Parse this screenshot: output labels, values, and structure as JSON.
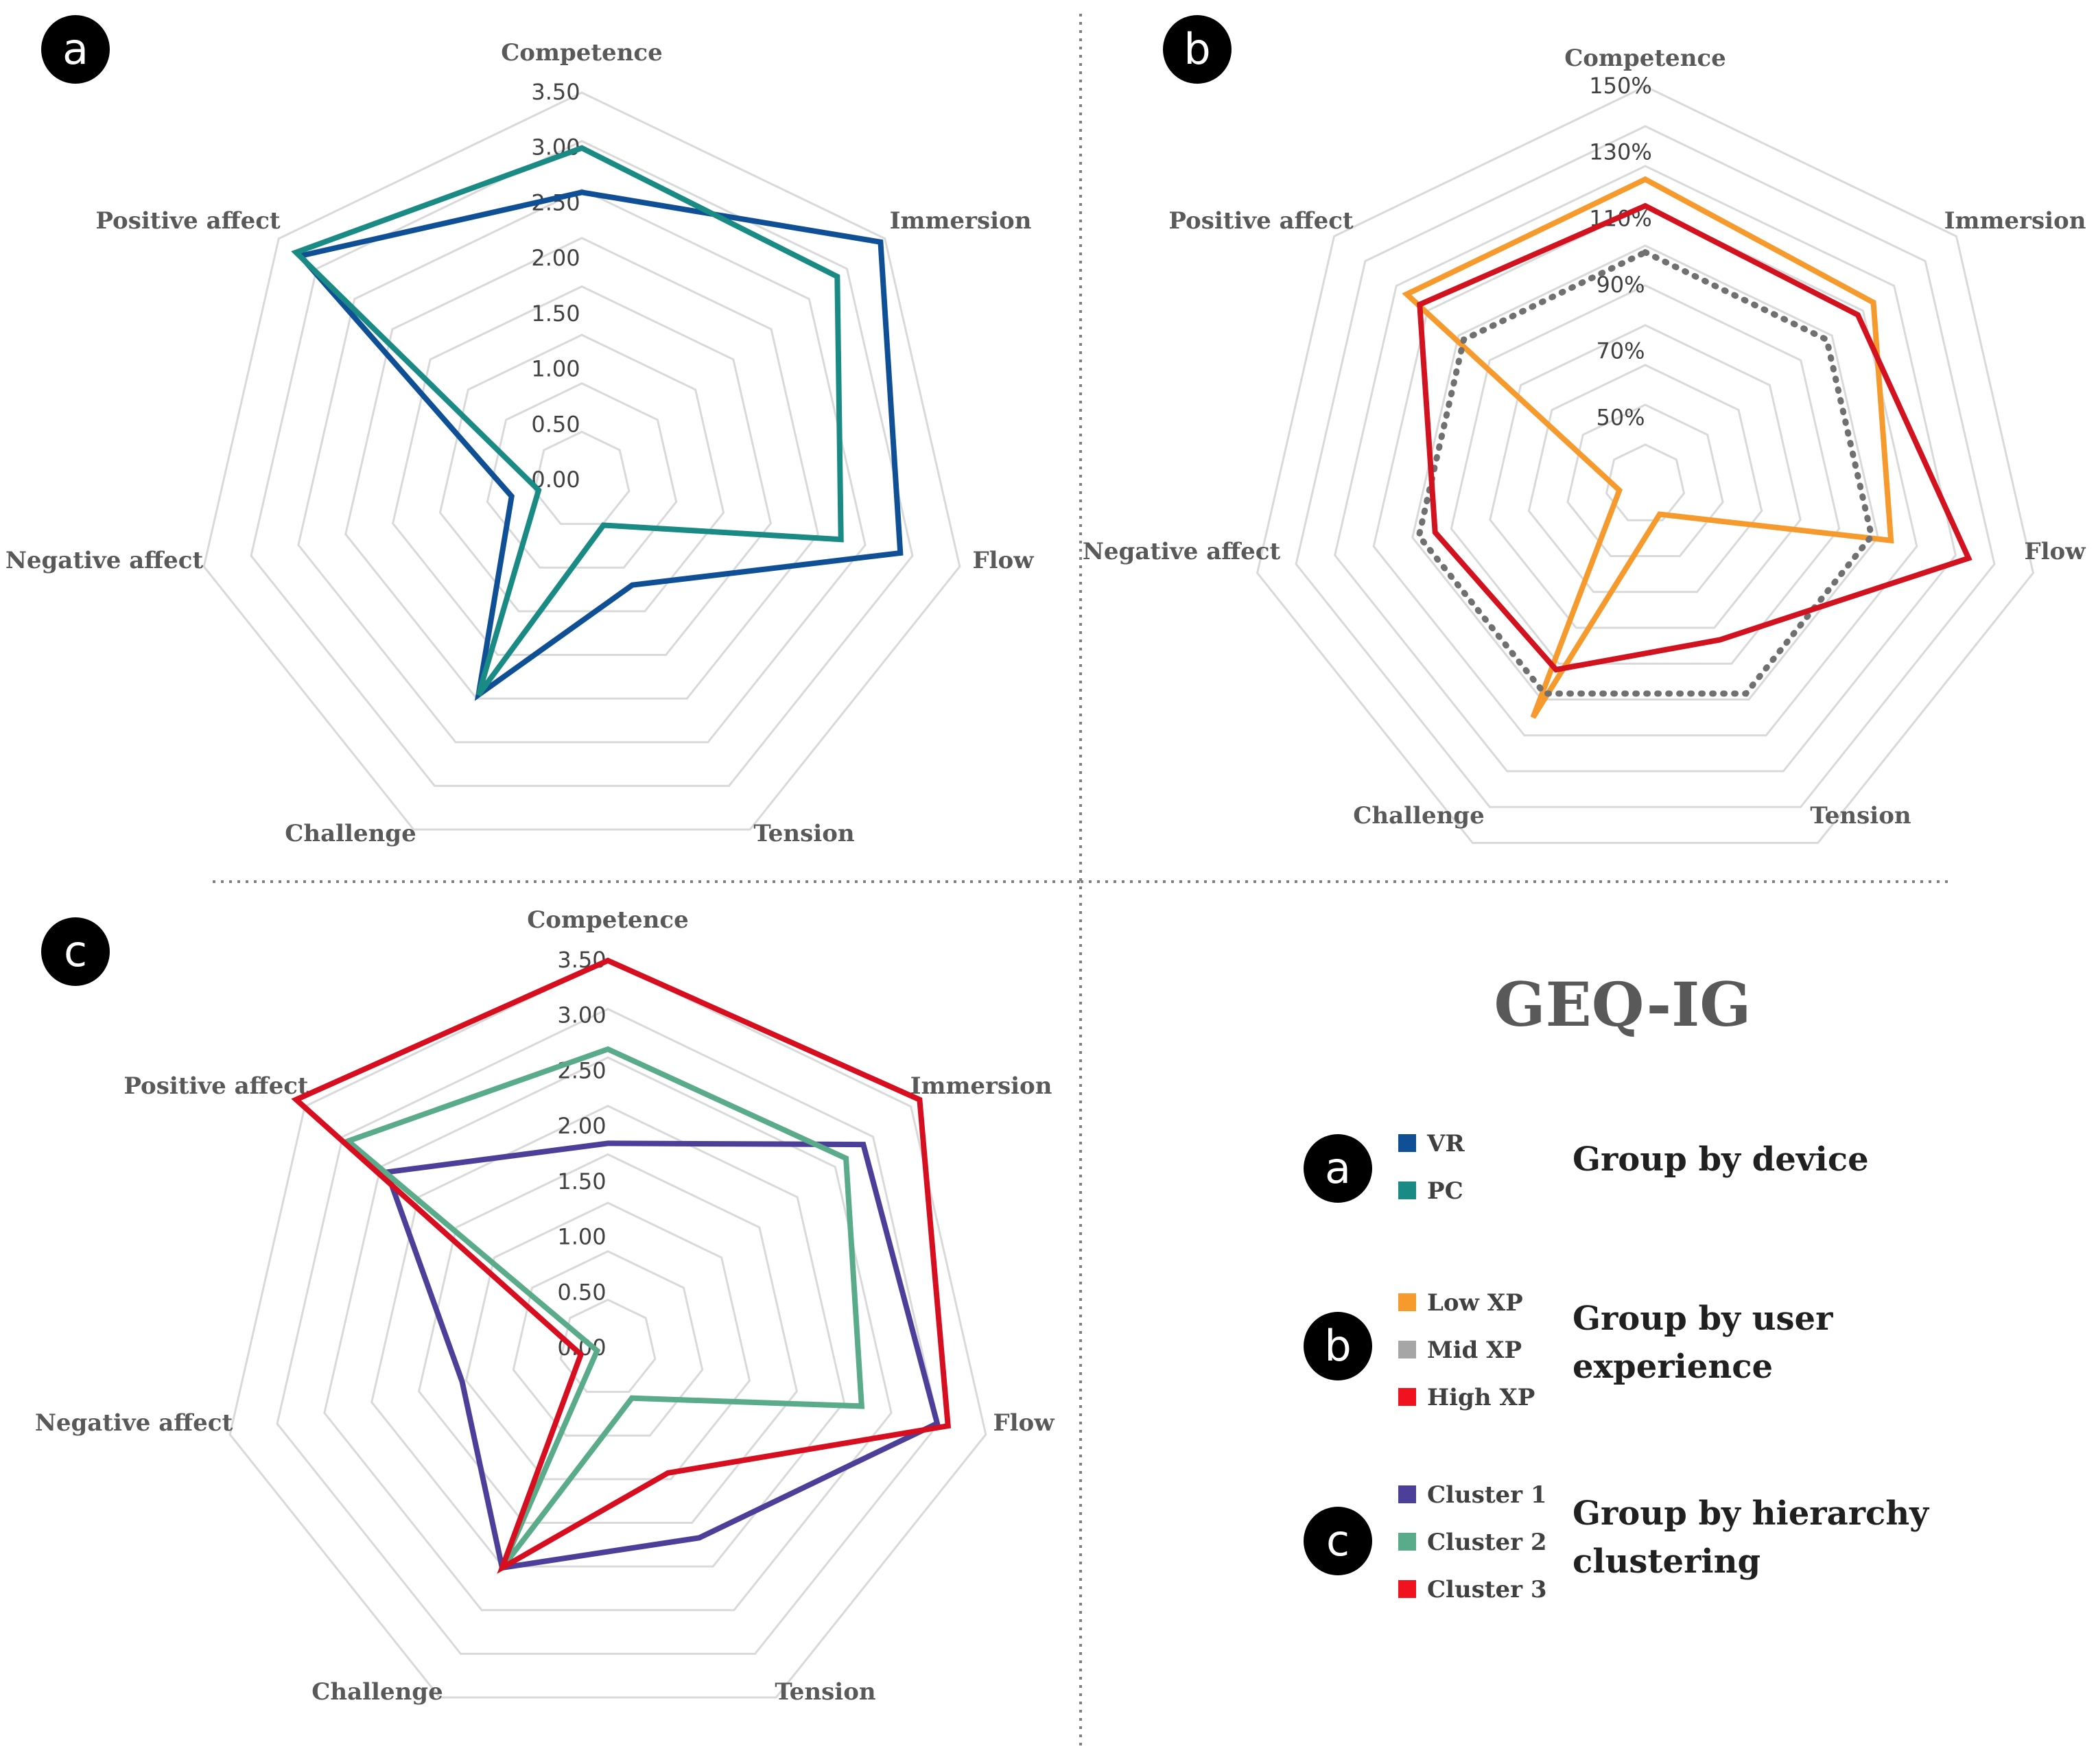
{
  "title": "GEQ-IG",
  "panel_letters": [
    "a",
    "b",
    "c"
  ],
  "chart_data": [
    {
      "type": "radar",
      "panel": "a",
      "axes": [
        "Competence",
        "Immersion",
        "Flow",
        "Tension",
        "Challenge",
        "Negative affect",
        "Positive affect"
      ],
      "ticks": [
        "0.00",
        "0.50",
        "1.00",
        "1.50",
        "2.00",
        "2.50",
        "3.00",
        "3.50"
      ],
      "range": [
        0,
        3.5
      ],
      "series": [
        {
          "name": "VR",
          "color": "#0e4f96",
          "values": [
            2.6,
            3.45,
            2.95,
            1.05,
            2.15,
            0.65,
            3.25
          ]
        },
        {
          "name": "PC",
          "color": "#1a8a85",
          "values": [
            3.0,
            2.95,
            2.4,
            0.45,
            2.15,
            0.4,
            3.3
          ]
        }
      ]
    },
    {
      "type": "radar",
      "panel": "b",
      "axes": [
        "Competence",
        "Immersion",
        "Flow",
        "Tension",
        "Challenge",
        "Negative affect",
        "Positive affect"
      ],
      "ticks": [
        "50%",
        "70%",
        "90%",
        "110%",
        "130%",
        "150%"
      ],
      "range": [
        0.3,
        1.5
      ],
      "series": [
        {
          "name": "Low XP",
          "color": "#f79a2e",
          "dash": false,
          "values": [
            1.22,
            1.18,
            1.06,
            0.4,
            1.08,
            0.38,
            1.22
          ]
        },
        {
          "name": "Mid XP",
          "color": "#707070",
          "dash": true,
          "values": [
            1.0,
            1.0,
            1.0,
            1.0,
            1.0,
            1.0,
            1.0
          ]
        },
        {
          "name": "High XP",
          "color": "#d2121f",
          "dash": false,
          "values": [
            1.14,
            1.12,
            1.3,
            0.82,
            0.92,
            0.95,
            1.17
          ]
        }
      ]
    },
    {
      "type": "radar",
      "panel": "c",
      "axes": [
        "Competence",
        "Immersion",
        "Flow",
        "Tension",
        "Challenge",
        "Negative affect",
        "Positive affect"
      ],
      "ticks": [
        "0.00",
        "0.50",
        "1.00",
        "1.50",
        "2.00",
        "2.50",
        "3.00",
        "3.50"
      ],
      "range": [
        0,
        3.5
      ],
      "series": [
        {
          "name": "Cluster 1",
          "color": "#4c3f9a",
          "values": [
            1.85,
            2.95,
            3.05,
            1.9,
            2.2,
            1.35,
            2.55
          ]
        },
        {
          "name": "Cluster 2",
          "color": "#5aab8a",
          "values": [
            2.7,
            2.75,
            2.35,
            0.5,
            2.2,
            0.1,
            3.0
          ]
        },
        {
          "name": "Cluster 3",
          "color": "#d70e1f",
          "values": [
            3.5,
            3.6,
            3.15,
            1.25,
            2.2,
            0.25,
            3.6
          ]
        }
      ]
    }
  ],
  "legend": [
    {
      "letter": "a",
      "group": [
        "Group by device"
      ],
      "items": [
        {
          "label": "VR",
          "color": "#0e4f96"
        },
        {
          "label": "PC",
          "color": "#1a8a85"
        }
      ]
    },
    {
      "letter": "b",
      "group": [
        "Group by user",
        "experience"
      ],
      "items": [
        {
          "label": "Low XP",
          "color": "#f79a2e"
        },
        {
          "label": "Mid XP",
          "color": "#a6a6a6"
        },
        {
          "label": "High XP",
          "color": "#f0121f"
        }
      ]
    },
    {
      "letter": "c",
      "group": [
        "Group by hierarchy",
        "clustering"
      ],
      "items": [
        {
          "label": "Cluster 1",
          "color": "#4c3f9a"
        },
        {
          "label": "Cluster 2",
          "color": "#5aab8a"
        },
        {
          "label": "Cluster 3",
          "color": "#f0121f"
        }
      ]
    }
  ]
}
